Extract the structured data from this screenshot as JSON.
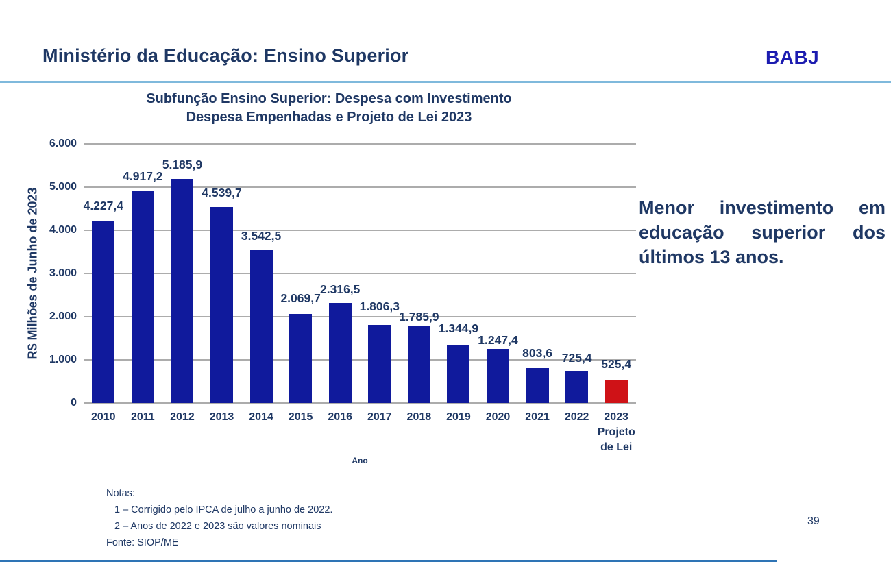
{
  "slide": {
    "header": {
      "title": "Ministério da Educação: Ensino Superior",
      "logo": "BABJ"
    },
    "callout": "Menor investimento em educação superior dos últimos 13 anos.",
    "notes": {
      "heading": "Notas:",
      "items": [
        "1 – Corrigido pelo IPCA de julho a junho de 2022.",
        "2 – Anos de 2022 e 2023 são valores nominais"
      ],
      "source": "Fonte: SIOP/ME"
    },
    "page_number": "39",
    "colors": {
      "navy_text": "#1F3864",
      "logo_blue": "#1C1CB0",
      "bar_blue": "#101A9C",
      "bar_red": "#CF1217",
      "gridline": "#ACACAC",
      "header_rule": "#7FB9DC",
      "footer_rule": "#2E74B5"
    }
  },
  "chart_data": {
    "type": "bar",
    "title_line1": "Subfunção Ensino Superior: Despesa com Investimento",
    "title_line2": "Despesa Empenhadas e Projeto de Lei 2023",
    "xlabel": "Ano",
    "ylabel": "R$ Milhões de Junho de 2023",
    "ylim": [
      0,
      6000
    ],
    "yticks": [
      0,
      1000,
      2000,
      3000,
      4000,
      5000,
      6000
    ],
    "ytick_labels": [
      "0",
      "1.000",
      "2.000",
      "3.000",
      "4.000",
      "5.000",
      "6.000"
    ],
    "grid": true,
    "legend": false,
    "categories": [
      "2010",
      "2011",
      "2012",
      "2013",
      "2014",
      "2015",
      "2016",
      "2017",
      "2018",
      "2019",
      "2020",
      "2021",
      "2022",
      "2023"
    ],
    "last_category_extra_lines": [
      "Projeto",
      "de Lei"
    ],
    "values": [
      4227.4,
      4917.2,
      5185.9,
      4539.7,
      3542.5,
      2069.7,
      2316.5,
      1806.3,
      1785.9,
      1344.9,
      1247.4,
      803.6,
      725.4,
      525.4
    ],
    "data_labels": [
      "4.227,4",
      "4.917,2",
      "5.185,9",
      "4.539,7",
      "3.542,5",
      "2.069,7",
      "2.316,5",
      "1.806,3",
      "1.785,9",
      "1.344,9",
      "1.247,4",
      "803,6",
      "725,4",
      "525,4"
    ],
    "highlight_index": 13
  }
}
